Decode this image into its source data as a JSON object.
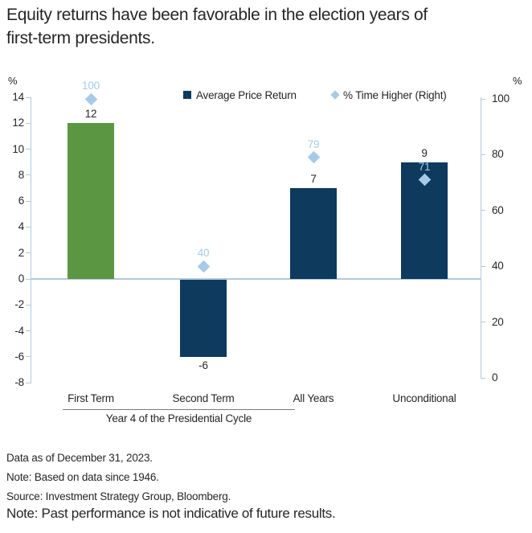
{
  "title": {
    "line1": "Equity returns have been favorable in the election years of",
    "line2": "first-term presidents."
  },
  "legend": [
    {
      "label": "Average Price Return",
      "marker": "square-icon",
      "color": "#0e3a5e"
    },
    {
      "label": "% Time Higher (Right)",
      "marker": "diamond-icon",
      "color": "#a5cbe9"
    }
  ],
  "chart_data": {
    "type": "bar",
    "categories": [
      "First Term",
      "Second Term",
      "All Years",
      "Unconditional"
    ],
    "series": [
      {
        "name": "Average Price Return",
        "type": "bar",
        "axis": "left",
        "values": [
          12,
          -6,
          7,
          9
        ],
        "colors": [
          "#5b9742",
          "#0e3a5e",
          "#0e3a5e",
          "#0e3a5e"
        ]
      },
      {
        "name": "% Time Higher (Right)",
        "type": "scatter",
        "marker": "diamond",
        "axis": "right",
        "values": [
          100,
          40,
          79,
          71
        ],
        "color": "#a5cbe9"
      }
    ],
    "left_axis": {
      "unit": "%",
      "min": -8,
      "max": 14,
      "ticks": [
        14,
        12,
        10,
        8,
        6,
        4,
        2,
        0,
        -2,
        -4,
        -6,
        -8
      ]
    },
    "right_axis": {
      "unit": "%",
      "min": 0,
      "max": 100,
      "ticks": [
        100,
        80,
        60,
        40,
        20,
        0
      ]
    },
    "xlabel": "Year 4 of the Presidential Cycle",
    "xlabel_underline_span": [
      "First Term",
      "All Years"
    ],
    "grid": false,
    "legend_position": "top"
  },
  "colors": {
    "navy": "#0e3a5e",
    "green": "#5b9742",
    "light_blue": "#a5cbe9",
    "axis_line": "#b3c8e0",
    "text": "#262626",
    "underline_gray": "#7a7a7a"
  },
  "footnotes": [
    "Data as of December 31, 2023.",
    "Note: Based on data since 1946.",
    "Source: Investment Strategy Group, Bloomberg."
  ],
  "disclaimer": "Note: Past performance is not indicative of future results."
}
